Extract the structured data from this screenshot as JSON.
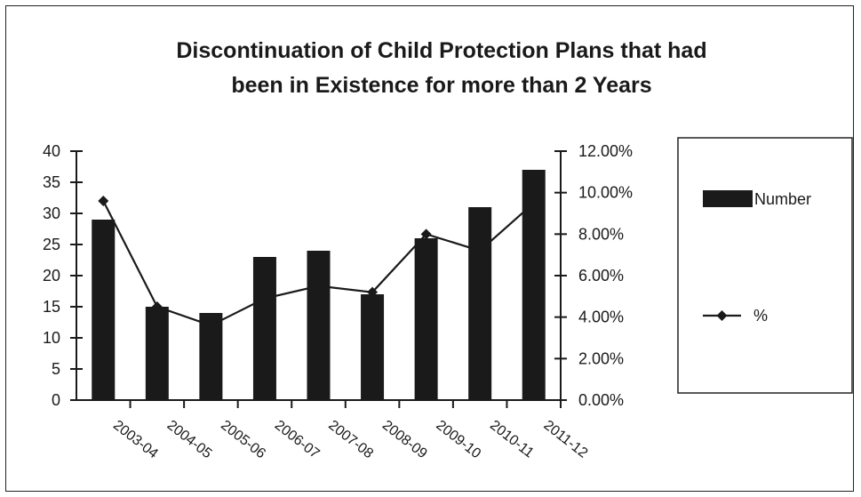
{
  "chart_data": {
    "type": "bar",
    "title": "Discontinuation of Child Protection Plans that had been in Existence for more than 2 Years",
    "title_lines": [
      "Discontinuation of Child Protection Plans that had",
      "been in Existence for more than 2 Years"
    ],
    "categories": [
      "2003-04",
      "2004-05",
      "2005-06",
      "2006-07",
      "2007-08",
      "2008-09",
      "2009-10",
      "2010-11",
      "2011-12"
    ],
    "series": [
      {
        "name": "Number",
        "type": "bar",
        "axis": "left",
        "values": [
          29,
          15,
          14,
          23,
          24,
          17,
          26,
          31,
          37
        ]
      },
      {
        "name": "%",
        "type": "line",
        "axis": "right",
        "values": [
          0.096,
          0.045,
          0.036,
          0.049,
          0.055,
          0.052,
          0.08,
          0.072,
          0.095
        ]
      }
    ],
    "y_left": {
      "min": 0,
      "max": 40,
      "ticks": [
        "0",
        "5",
        "10",
        "15",
        "20",
        "25",
        "30",
        "35",
        "40"
      ]
    },
    "y_right": {
      "min": 0,
      "max": 0.12,
      "ticks": [
        "0.00%",
        "2.00%",
        "4.00%",
        "6.00%",
        "8.00%",
        "10.00%",
        "12.00%"
      ]
    },
    "grid": false,
    "legend": {
      "position": "right",
      "entries": [
        "Number",
        "%"
      ]
    },
    "colors": {
      "bar": "#1a1a1a",
      "line": "#1a1a1a",
      "axis": "#1a1a1a"
    }
  }
}
